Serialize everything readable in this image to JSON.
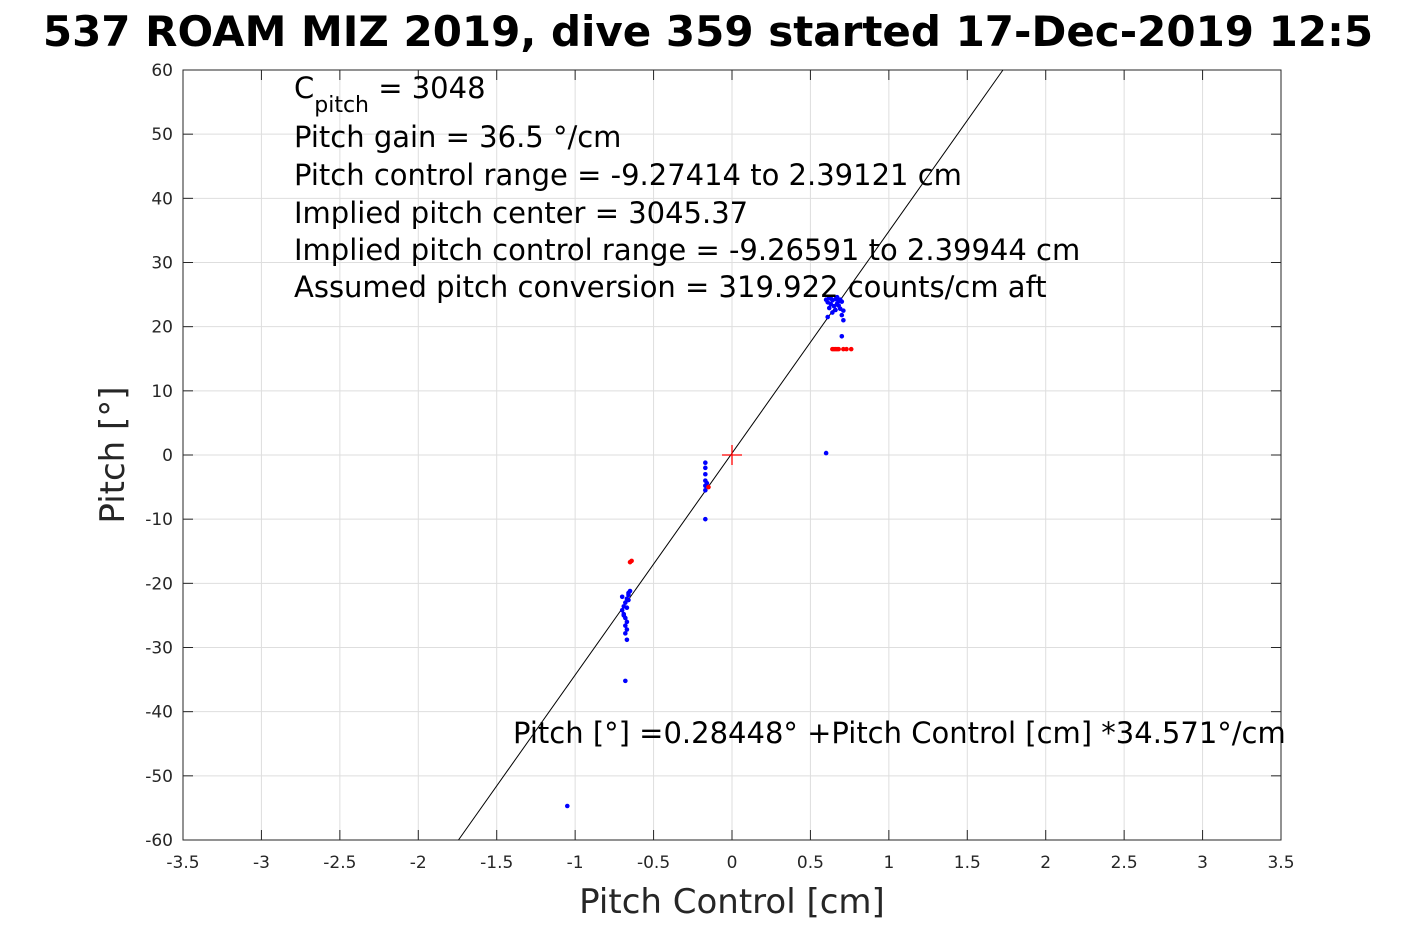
{
  "chart_data": {
    "type": "scatter",
    "title": "537 ROAM MIZ 2019, dive 359 started 17-Dec-2019 12:5",
    "xlabel": "Pitch Control [cm]",
    "ylabel": "Pitch [°]",
    "xlim": [
      -3.5,
      3.5
    ],
    "ylim": [
      -60,
      60
    ],
    "xticks": [
      -3.5,
      -3,
      -2.5,
      -2,
      -1.5,
      -1,
      -0.5,
      0,
      0.5,
      1,
      1.5,
      2,
      2.5,
      3,
      3.5
    ],
    "yticks": [
      -60,
      -50,
      -40,
      -30,
      -20,
      -10,
      0,
      10,
      20,
      30,
      40,
      50,
      60
    ],
    "grid": true,
    "annotations": [
      {
        "base": "C",
        "sub": "pitch",
        "rest": " = 3048"
      },
      {
        "text": "Pitch gain = 36.5 °/cm"
      },
      {
        "text": "Pitch control range = -9.27414 to 2.39121 cm"
      },
      {
        "text": "Implied pitch center = 3045.37"
      },
      {
        "text": "Implied pitch control range = -9.26591 to 2.39944 cm"
      },
      {
        "text": "Assumed pitch conversion = 319.922 counts/cm aft"
      }
    ],
    "fit_label": "Pitch [°] =0.28448° +Pitch Control [cm] *34.571°/cm",
    "fit_line": {
      "intercept": 0.28448,
      "slope": 34.571,
      "color": "#000000"
    },
    "center_marker": {
      "x": 0,
      "y": 0,
      "color": "#ff0000",
      "symbol": "+"
    },
    "series": [
      {
        "color": "#0000ff",
        "points": [
          [
            0.6,
            24.2
          ],
          [
            0.61,
            23.8
          ],
          [
            0.62,
            24.5
          ],
          [
            0.63,
            23.5
          ],
          [
            0.64,
            24.1
          ],
          [
            0.65,
            23.2
          ],
          [
            0.66,
            24.3
          ],
          [
            0.67,
            23.6
          ],
          [
            0.68,
            24.0
          ],
          [
            0.69,
            22.8
          ],
          [
            0.7,
            23.9
          ],
          [
            0.71,
            22.5
          ],
          [
            0.62,
            22.9
          ],
          [
            0.64,
            22.2
          ],
          [
            0.66,
            22.6
          ],
          [
            0.68,
            23.3
          ],
          [
            0.7,
            21.8
          ],
          [
            0.71,
            21.0
          ],
          [
            0.61,
            21.5
          ],
          [
            0.63,
            24.4
          ],
          [
            0.67,
            24.6
          ],
          [
            0.69,
            24.2
          ],
          [
            0.7,
            18.5
          ],
          [
            0.6,
            0.3
          ],
          [
            -0.17,
            -1.2
          ],
          [
            -0.17,
            -2.0
          ],
          [
            -0.17,
            -3.0
          ],
          [
            -0.17,
            -4.0
          ],
          [
            -0.17,
            -4.8
          ],
          [
            -0.17,
            -5.5
          ],
          [
            -0.16,
            -4.4
          ],
          [
            -0.17,
            -10.0
          ],
          [
            -0.65,
            -21.2
          ],
          [
            -0.66,
            -21.8
          ],
          [
            -0.67,
            -22.4
          ],
          [
            -0.68,
            -23.0
          ],
          [
            -0.69,
            -23.6
          ],
          [
            -0.7,
            -24.2
          ],
          [
            -0.69,
            -24.8
          ],
          [
            -0.68,
            -25.4
          ],
          [
            -0.67,
            -26.0
          ],
          [
            -0.68,
            -26.6
          ],
          [
            -0.67,
            -27.2
          ],
          [
            -0.68,
            -27.8
          ],
          [
            -0.67,
            -28.8
          ],
          [
            -0.66,
            -22.6
          ],
          [
            -0.67,
            -23.8
          ],
          [
            -0.69,
            -25.0
          ],
          [
            -0.7,
            -22.1
          ],
          [
            -0.66,
            -21.5
          ],
          [
            -0.68,
            -35.2
          ],
          [
            -1.05,
            -54.7
          ]
        ]
      },
      {
        "color": "#ff0000",
        "points": [
          [
            0.64,
            16.5
          ],
          [
            0.65,
            16.5
          ],
          [
            0.66,
            16.5
          ],
          [
            0.67,
            16.5
          ],
          [
            0.68,
            16.5
          ],
          [
            0.71,
            16.5
          ],
          [
            0.73,
            16.5
          ],
          [
            0.76,
            16.5
          ],
          [
            -0.65,
            -16.7
          ],
          [
            -0.64,
            -16.5
          ],
          [
            -0.15,
            -5.0
          ]
        ]
      }
    ]
  }
}
